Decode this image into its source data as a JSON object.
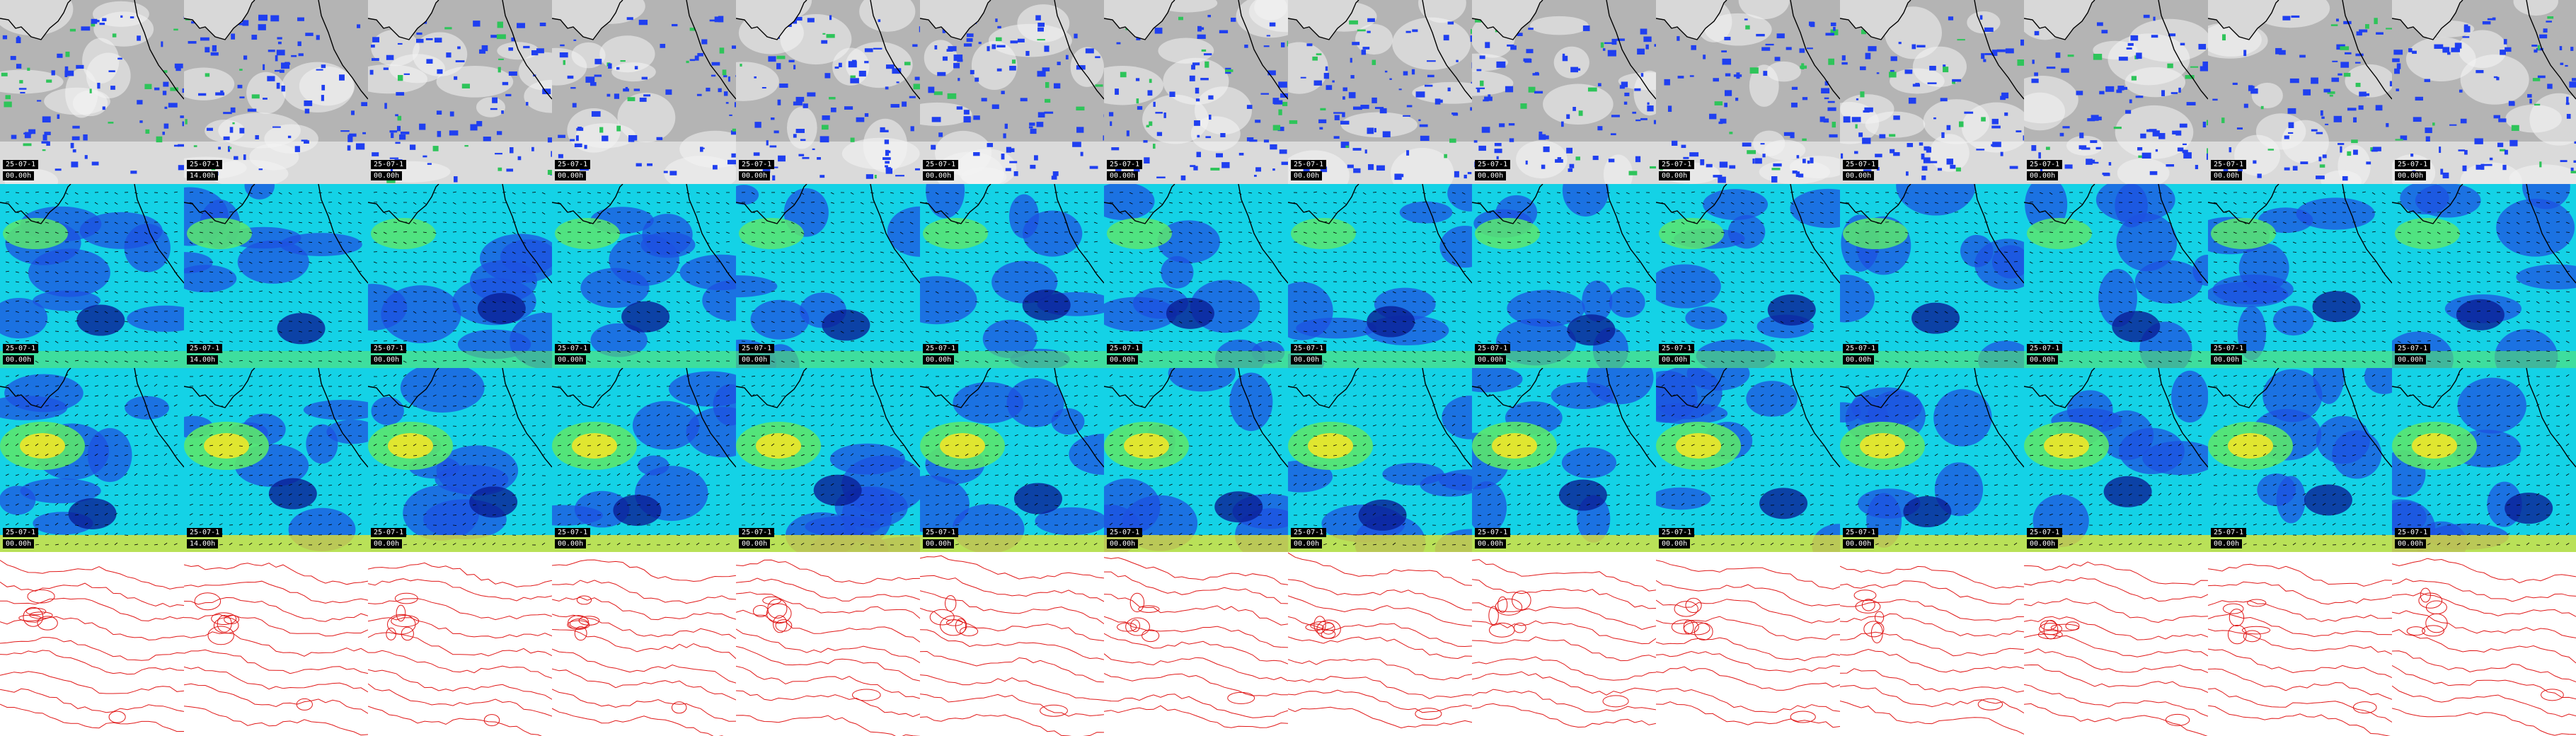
{
  "layout_rows": [
    "cloud",
    "wind_low",
    "wind_high",
    "pressure"
  ],
  "panel_count": 14,
  "panels": [
    {
      "date": "25-07-1",
      "time": "00.00h"
    },
    {
      "date": "25-07-1",
      "time": "14.00h"
    },
    {
      "date": "25-07-1",
      "time": "00.00h"
    },
    {
      "date": "25-07-1",
      "time": "00.00h"
    },
    {
      "date": "25-07-1",
      "time": "00.00h"
    },
    {
      "date": "25-07-1",
      "time": "00.00h"
    },
    {
      "date": "25-07-1",
      "time": "00.00h"
    },
    {
      "date": "25-07-1",
      "time": "00.00h"
    },
    {
      "date": "25-07-1",
      "time": "00.00h"
    },
    {
      "date": "25-07-1",
      "time": "00.00h"
    },
    {
      "date": "25-07-1",
      "time": "00.00h"
    },
    {
      "date": "25-07-1",
      "time": "00.00h"
    },
    {
      "date": "25-07-1",
      "time": "00.00h"
    },
    {
      "date": "25-07-1",
      "time": "00.00h"
    }
  ],
  "colors": {
    "cloud_bg": "#b4b4b4",
    "cloud_blue": "#1f3ff0",
    "cloud_green": "#2ec45a",
    "cloud_white": "#f4f4f4",
    "wind_cyan": "#14d2e6",
    "wind_blue": "#1e52e0",
    "wind_darkblue": "#0a1e96",
    "wind_green": "#5ae66e",
    "wind_yellow": "#f0e628",
    "coast": "#000000",
    "contour": "#e01818"
  },
  "icons": [
    "wind-arrow-icon"
  ]
}
